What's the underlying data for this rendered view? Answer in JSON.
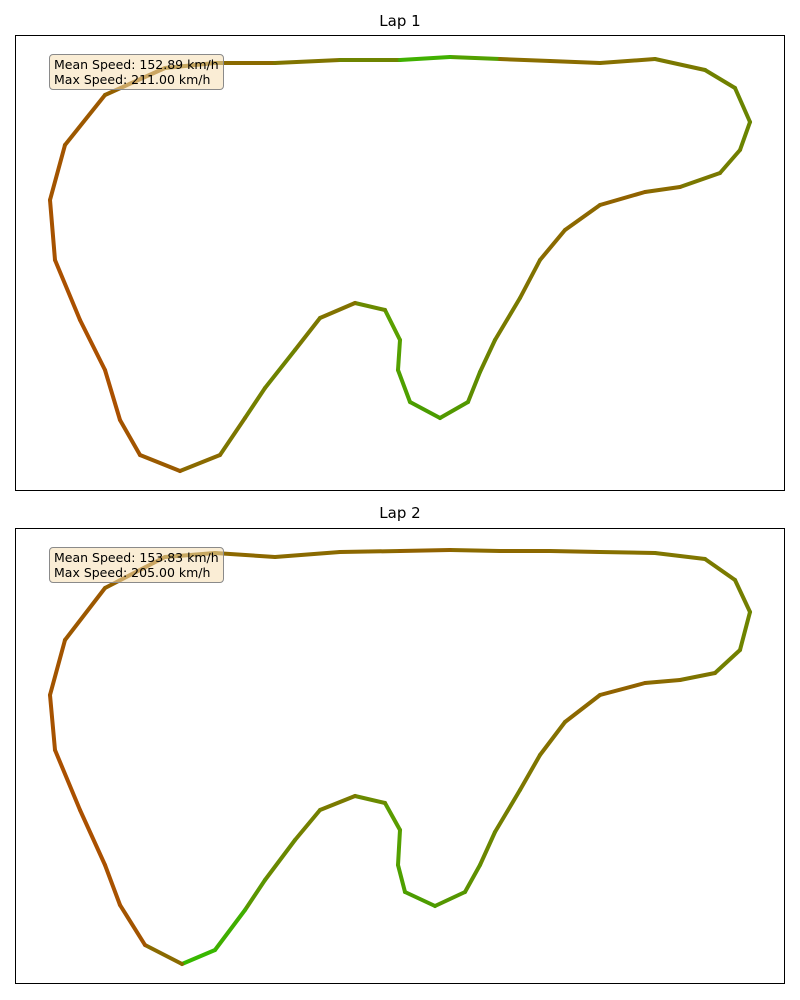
{
  "chart_data": [
    {
      "type": "line",
      "title": "Lap 1",
      "stats": {
        "mean": "Mean Speed: 152.89 km/h",
        "max": "Max Speed: 211.00 km/h"
      },
      "series": [
        {
          "values": [
            {
              "x": 450,
              "y": 57,
              "c": "#52a000"
            },
            {
              "x": 500,
              "y": 59,
              "c": "#8a6e00"
            },
            {
              "x": 550,
              "y": 61,
              "c": "#8a6c00"
            },
            {
              "x": 600,
              "y": 63,
              "c": "#867000"
            },
            {
              "x": 655,
              "y": 59,
              "c": "#7a7800"
            },
            {
              "x": 705,
              "y": 70,
              "c": "#708000"
            },
            {
              "x": 735,
              "y": 88,
              "c": "#6a8400"
            },
            {
              "x": 750,
              "y": 122,
              "c": "#6a8400"
            },
            {
              "x": 740,
              "y": 150,
              "c": "#727e00"
            },
            {
              "x": 720,
              "y": 173,
              "c": "#7a7800"
            },
            {
              "x": 680,
              "y": 187,
              "c": "#8a6a00"
            },
            {
              "x": 645,
              "y": 192,
              "c": "#906200"
            },
            {
              "x": 600,
              "y": 205,
              "c": "#8c6800"
            },
            {
              "x": 565,
              "y": 230,
              "c": "#8a6a00"
            },
            {
              "x": 540,
              "y": 260,
              "c": "#807200"
            },
            {
              "x": 520,
              "y": 298,
              "c": "#787a00"
            },
            {
              "x": 495,
              "y": 340,
              "c": "#6c8200"
            },
            {
              "x": 480,
              "y": 372,
              "c": "#5e8c00"
            },
            {
              "x": 468,
              "y": 402,
              "c": "#529800"
            },
            {
              "x": 440,
              "y": 418,
              "c": "#4a9c00"
            },
            {
              "x": 410,
              "y": 402,
              "c": "#4ea000"
            },
            {
              "x": 398,
              "y": 370,
              "c": "#54a000"
            },
            {
              "x": 400,
              "y": 340,
              "c": "#5aa000"
            },
            {
              "x": 385,
              "y": 310,
              "c": "#6a8a00"
            },
            {
              "x": 355,
              "y": 303,
              "c": "#827200"
            },
            {
              "x": 320,
              "y": 318,
              "c": "#7a7800"
            },
            {
              "x": 295,
              "y": 350,
              "c": "#6e8200"
            },
            {
              "x": 265,
              "y": 388,
              "c": "#748000"
            },
            {
              "x": 245,
              "y": 418,
              "c": "#7c7600"
            },
            {
              "x": 220,
              "y": 455,
              "c": "#8a6a00"
            },
            {
              "x": 180,
              "y": 471,
              "c": "#9a5a00"
            },
            {
              "x": 140,
              "y": 455,
              "c": "#a25400"
            },
            {
              "x": 120,
              "y": 420,
              "c": "#aa5000"
            },
            {
              "x": 105,
              "y": 370,
              "c": "#aa5000"
            },
            {
              "x": 80,
              "y": 320,
              "c": "#aa5000"
            },
            {
              "x": 55,
              "y": 260,
              "c": "#a65200"
            },
            {
              "x": 50,
              "y": 200,
              "c": "#a25400"
            },
            {
              "x": 65,
              "y": 145,
              "c": "#9c5800"
            },
            {
              "x": 105,
              "y": 95,
              "c": "#946000"
            },
            {
              "x": 165,
              "y": 68,
              "c": "#8e6600"
            },
            {
              "x": 215,
              "y": 63,
              "c": "#8a6a00"
            },
            {
              "x": 275,
              "y": 63,
              "c": "#807400"
            },
            {
              "x": 340,
              "y": 60,
              "c": "#6e8400"
            },
            {
              "x": 400,
              "y": 60,
              "c": "#40b000"
            },
            {
              "x": 450,
              "y": 57,
              "c": "#30c800"
            }
          ]
        }
      ]
    },
    {
      "type": "line",
      "title": "Lap 2",
      "stats": {
        "mean": "Mean Speed: 153.83 km/h",
        "max": "Max Speed: 205.00 km/h"
      },
      "series": [
        {
          "values": [
            {
              "x": 450,
              "y": 550,
              "c": "#8a6a00"
            },
            {
              "x": 500,
              "y": 551,
              "c": "#8c6800"
            },
            {
              "x": 550,
              "y": 551,
              "c": "#8a6a00"
            },
            {
              "x": 600,
              "y": 552,
              "c": "#867000"
            },
            {
              "x": 655,
              "y": 553,
              "c": "#807600"
            },
            {
              "x": 705,
              "y": 559,
              "c": "#7a7a00"
            },
            {
              "x": 735,
              "y": 580,
              "c": "#747e00"
            },
            {
              "x": 750,
              "y": 612,
              "c": "#6e8400"
            },
            {
              "x": 740,
              "y": 650,
              "c": "#728000"
            },
            {
              "x": 715,
              "y": 673,
              "c": "#7e7400"
            },
            {
              "x": 680,
              "y": 680,
              "c": "#8a6a00"
            },
            {
              "x": 645,
              "y": 683,
              "c": "#906200"
            },
            {
              "x": 600,
              "y": 695,
              "c": "#8c6800"
            },
            {
              "x": 565,
              "y": 722,
              "c": "#847000"
            },
            {
              "x": 540,
              "y": 755,
              "c": "#7e7600"
            },
            {
              "x": 520,
              "y": 790,
              "c": "#747e00"
            },
            {
              "x": 495,
              "y": 832,
              "c": "#6a8600"
            },
            {
              "x": 480,
              "y": 865,
              "c": "#5e9000"
            },
            {
              "x": 465,
              "y": 892,
              "c": "#549600"
            },
            {
              "x": 435,
              "y": 906,
              "c": "#4c9c00"
            },
            {
              "x": 405,
              "y": 892,
              "c": "#4ea000"
            },
            {
              "x": 398,
              "y": 865,
              "c": "#54a000"
            },
            {
              "x": 400,
              "y": 830,
              "c": "#5a9c00"
            },
            {
              "x": 385,
              "y": 803,
              "c": "#6a8a00"
            },
            {
              "x": 355,
              "y": 796,
              "c": "#7a7a00"
            },
            {
              "x": 320,
              "y": 810,
              "c": "#748000"
            },
            {
              "x": 295,
              "y": 840,
              "c": "#6a8800"
            },
            {
              "x": 265,
              "y": 880,
              "c": "#5a9600"
            },
            {
              "x": 245,
              "y": 910,
              "c": "#40ae00"
            },
            {
              "x": 215,
              "y": 950,
              "c": "#38b800"
            },
            {
              "x": 182,
              "y": 964,
              "c": "#8a6a00"
            },
            {
              "x": 145,
              "y": 945,
              "c": "#a25400"
            },
            {
              "x": 120,
              "y": 905,
              "c": "#a85200"
            },
            {
              "x": 105,
              "y": 865,
              "c": "#aa5000"
            },
            {
              "x": 80,
              "y": 810,
              "c": "#aa5000"
            },
            {
              "x": 55,
              "y": 750,
              "c": "#a65200"
            },
            {
              "x": 50,
              "y": 695,
              "c": "#a25400"
            },
            {
              "x": 65,
              "y": 640,
              "c": "#9c5800"
            },
            {
              "x": 105,
              "y": 588,
              "c": "#946000"
            },
            {
              "x": 165,
              "y": 557,
              "c": "#8e6600"
            },
            {
              "x": 215,
              "y": 553,
              "c": "#8c6800"
            },
            {
              "x": 275,
              "y": 557,
              "c": "#8a6a00"
            },
            {
              "x": 340,
              "y": 552,
              "c": "#8c6800"
            },
            {
              "x": 400,
              "y": 551,
              "c": "#906200"
            },
            {
              "x": 450,
              "y": 550,
              "c": "#8a6a00"
            }
          ]
        }
      ]
    }
  ]
}
